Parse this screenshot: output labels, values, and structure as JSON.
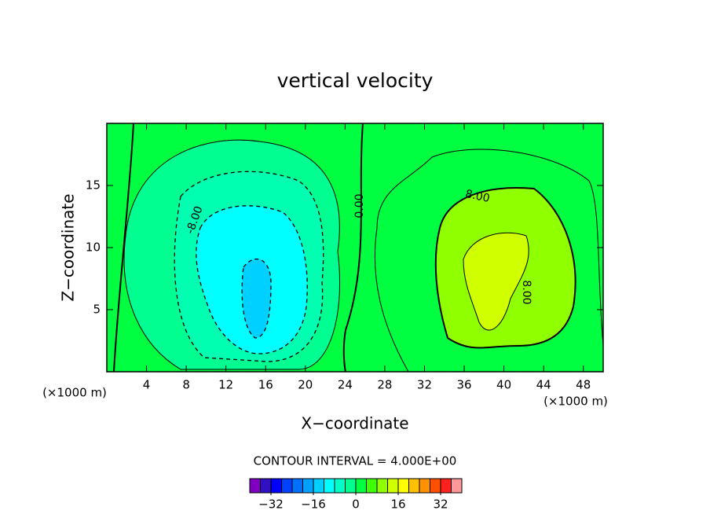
{
  "chart_data": {
    "type": "contour",
    "title": "vertical velocity",
    "xlabel": "X−coordinate",
    "ylabel": "Z−coordinate",
    "x_unit_label": "(×1000 m)",
    "xlim": [
      0,
      50
    ],
    "ylim": [
      0,
      20
    ],
    "xticks": [
      4,
      8,
      12,
      16,
      20,
      24,
      28,
      32,
      36,
      40,
      44,
      48
    ],
    "yticks": [
      5,
      10,
      15
    ],
    "contour_labels": [
      "-8.00",
      "0.00",
      "8.00",
      "8.00"
    ],
    "annotation": "CONTOUR INTERVAL = 4.000E+00",
    "colorbar": {
      "levels": [
        -40,
        -36,
        -32,
        -28,
        -24,
        -20,
        -16,
        -12,
        -8,
        -4,
        0,
        4,
        8,
        12,
        16,
        20,
        24,
        28,
        32,
        36,
        40
      ],
      "colors": [
        "#8000c0",
        "#3010c0",
        "#0000ff",
        "#0040ff",
        "#0070ff",
        "#00a0ff",
        "#00d0ff",
        "#00ffff",
        "#00ffc8",
        "#00ff90",
        "#00ff40",
        "#40ff00",
        "#90ff00",
        "#d0ff00",
        "#ffff00",
        "#ffc000",
        "#ff9000",
        "#ff5000",
        "#ff2020",
        "#ff9999"
      ],
      "ticks": [
        {
          "value": -32,
          "label": "−32"
        },
        {
          "value": -16,
          "label": "−16"
        },
        0,
        16,
        32
      ]
    }
  }
}
